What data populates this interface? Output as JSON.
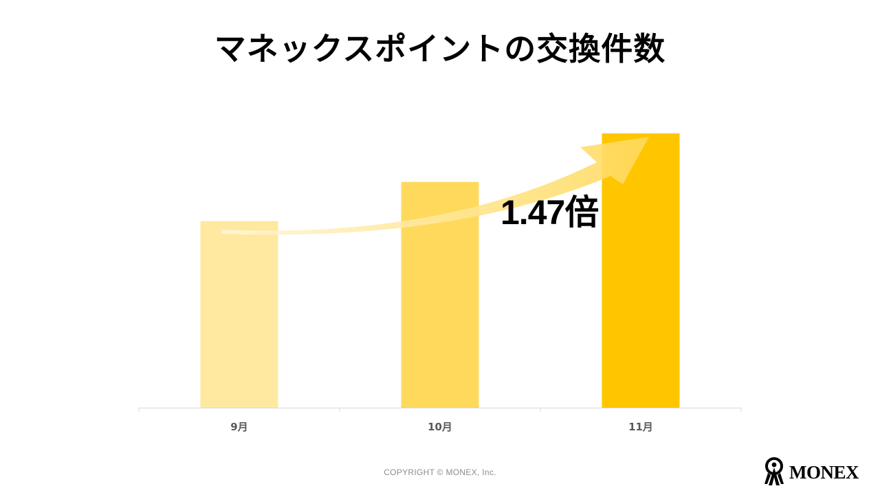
{
  "slide": {
    "title": "マネックスポイントの交換件数",
    "copyright": "COPYRIGHT © MONEX, Inc.",
    "logo_text": "MONEX"
  },
  "chart_data": {
    "type": "bar",
    "title": "",
    "categories": [
      "9月",
      "10月",
      "11月"
    ],
    "values": [
      1.0,
      1.21,
      1.47
    ],
    "ylim": [
      0,
      1.47
    ],
    "grid": false,
    "legend": "none",
    "bar_colors": [
      "#FFE9A0",
      "#FFD95C",
      "#FFC600"
    ],
    "annotation": {
      "text": "1.47倍",
      "arrow": "rising arrow from 9月 to 11月"
    }
  },
  "colors": {
    "axis": "#d9d9d9",
    "tick_label": "#595959",
    "arrow": "#FFD95C"
  }
}
